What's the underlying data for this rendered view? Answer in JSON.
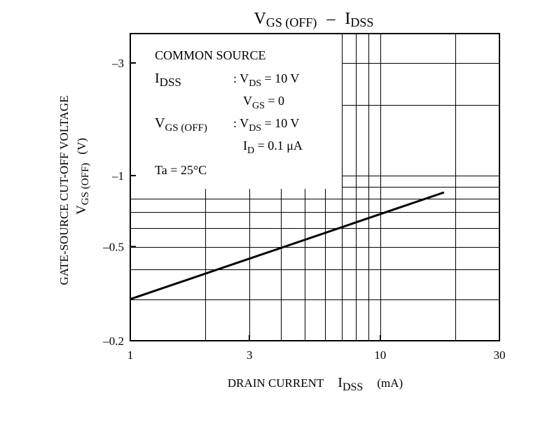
{
  "chart_data": {
    "type": "line",
    "title": {
      "main": "V",
      "main_sub": "GS (OFF)",
      "sep": "–",
      "right": "I",
      "right_sub": "DSS"
    },
    "xlabel": {
      "text": "DRAIN CURRENT",
      "symbol": "I",
      "symbol_sub": "DSS",
      "unit": "(mA)"
    },
    "ylabel": {
      "line1": "GATE-SOURCE CUT-OFF VOLTAGE",
      "symbol": "V",
      "symbol_sub": "GS (OFF)",
      "unit": "(V)"
    },
    "x_scale": "log",
    "y_scale": "log",
    "xlim": [
      1,
      30
    ],
    "ylim": [
      -0.2,
      -4
    ],
    "x_ticks": [
      {
        "value": 1,
        "label": "1"
      },
      {
        "value": 3,
        "label": "3"
      },
      {
        "value": 10,
        "label": "10"
      },
      {
        "value": 30,
        "label": "30"
      }
    ],
    "y_ticks": [
      {
        "value": -3,
        "label": "–3"
      },
      {
        "value": -1,
        "label": "–1"
      },
      {
        "value": -0.5,
        "label": "–0.5"
      },
      {
        "value": -0.2,
        "label": "–0.2"
      }
    ],
    "x_grid": [
      2,
      3,
      4,
      5,
      6,
      7,
      8,
      9,
      10,
      20
    ],
    "y_grid": [
      -0.3,
      -0.4,
      -0.5,
      -0.6,
      -0.7,
      -0.8,
      -0.9,
      -1,
      -2,
      -3
    ],
    "grid": true,
    "series": [
      {
        "x": [
          1,
          18
        ],
        "y": [
          -0.3,
          -0.85
        ]
      }
    ],
    "legend_box": {
      "heading": "COMMON SOURCE",
      "rows": [
        {
          "sym": "I",
          "sub": "DSS",
          "cond": ": V",
          "cond_sub": "DS",
          "cond_rest": " = 10 V"
        },
        {
          "sym": "",
          "sub": "",
          "cond": "V",
          "cond_sub": "GS",
          "cond_rest": " = 0"
        },
        {
          "sym": "V",
          "sub": "GS (OFF)",
          "cond": ": V",
          "cond_sub": "DS",
          "cond_rest": " = 10 V"
        },
        {
          "sym": "",
          "sub": "",
          "cond": "I",
          "cond_sub": "D",
          "cond_rest": " = 0.1 μA"
        }
      ],
      "footer": "Ta = 25°C"
    }
  }
}
